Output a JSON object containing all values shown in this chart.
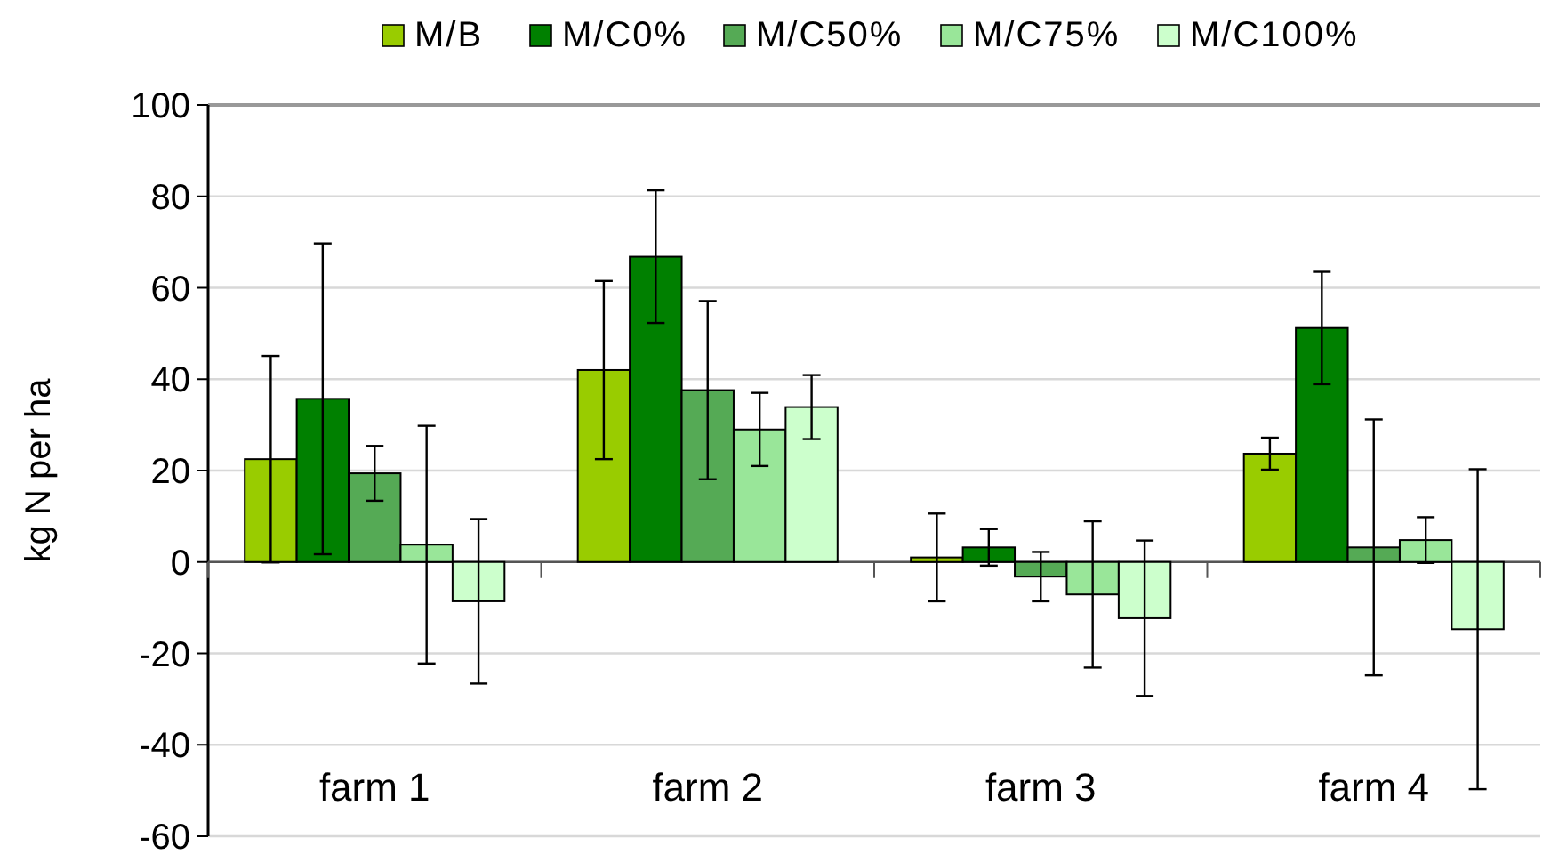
{
  "chart_data": {
    "type": "bar",
    "ylabel": "kg N per ha",
    "categories": [
      "farm 1",
      "farm 2",
      "farm 3",
      "farm 4"
    ],
    "ylim": [
      -60,
      100
    ],
    "yticks": [
      -60,
      -40,
      -20,
      0,
      20,
      40,
      60,
      80,
      100
    ],
    "grid": "y",
    "legend": "top",
    "series": [
      {
        "name": "M/B",
        "color": "#99cc00",
        "values": [
          22.5,
          42,
          1,
          23.7
        ],
        "errors": [
          22.6,
          19.5,
          9.6,
          3.5
        ]
      },
      {
        "name": "M/C0%",
        "color": "#008000",
        "values": [
          35.7,
          66.8,
          3.2,
          51.2
        ],
        "errors": [
          34,
          14.5,
          4,
          12.3
        ]
      },
      {
        "name": "M/C50%",
        "color": "#55aa55",
        "values": [
          19.4,
          37.6,
          -3.2,
          3.2
        ],
        "errors": [
          6,
          19.5,
          5.4,
          28
        ]
      },
      {
        "name": "M/C75%",
        "color": "#99e699",
        "values": [
          3.8,
          29,
          -7.1,
          4.8
        ],
        "errors": [
          26,
          8,
          16,
          5
        ]
      },
      {
        "name": "M/C100%",
        "color": "#ccffcc",
        "values": [
          -8.6,
          33.9,
          -12.3,
          -14.7
        ],
        "errors": [
          18,
          7,
          17,
          35
        ]
      }
    ]
  }
}
